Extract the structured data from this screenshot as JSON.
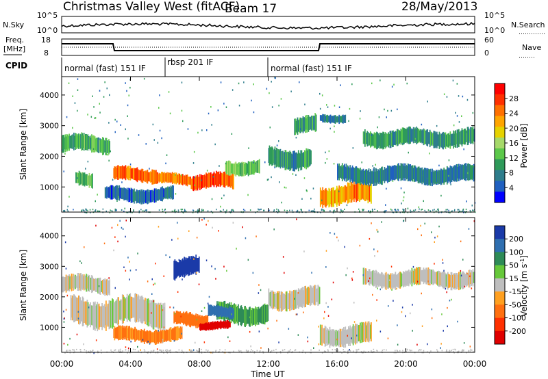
{
  "header": {
    "station": "Christmas Valley West (fitACF)",
    "beam": "Beam 17",
    "date": "28/May/2013"
  },
  "left_labels": {
    "nsky": "N.Sky",
    "freq_line1": "Freq.",
    "freq_line2": "[MHz]",
    "cpid": "CPID"
  },
  "right_labels": {
    "nsearch": "N.Search",
    "nave": "Nave"
  },
  "noise_axis": {
    "left_ticks": [
      "10^5",
      "10^0"
    ],
    "right_ticks": [
      "10^5",
      "10^0"
    ]
  },
  "freq_axis": {
    "left_ticks": [
      "18",
      "8"
    ],
    "right_ticks": [
      "60",
      "0"
    ]
  },
  "cpid_segments": [
    {
      "label": "normal (fast) 151 IF",
      "start_hour": 0,
      "end_hour": 6
    },
    {
      "label": "rbsp 201 IF",
      "start_hour": 6,
      "end_hour": 12
    },
    {
      "label": "normal (fast) 151 IF",
      "start_hour": 12,
      "end_hour": 24
    }
  ],
  "x_axis": {
    "ticks": [
      "00:00",
      "04:00",
      "08:00",
      "12:00",
      "16:00",
      "20:00",
      "00:00"
    ],
    "label": "Time UT"
  },
  "power_colorbar": {
    "label": "Power [dB]",
    "ticks": [
      "28",
      "24",
      "20",
      "16",
      "12",
      "8",
      "4"
    ],
    "colors": [
      "#ff0000",
      "#ff3000",
      "#ff7000",
      "#ffa500",
      "#e6d200",
      "#a6d96a",
      "#5cc84a",
      "#2f9a5a",
      "#2e7d8c",
      "#2060c0",
      "#0000ff"
    ]
  },
  "velocity_colorbar": {
    "label_prefix": "Velocity [m s",
    "label_sup": "-1",
    "label_suffix": "]",
    "ticks": [
      "200",
      "100",
      "50",
      "15",
      "-15",
      "-50",
      "-100",
      "-200"
    ],
    "colors": [
      "#1a3aa8",
      "#2f6fb0",
      "#2e8b57",
      "#66c83a",
      "#bebebe",
      "#ffa020",
      "#ff7010",
      "#ff3000",
      "#e00000"
    ]
  },
  "chart_data": [
    {
      "type": "heatmap",
      "title": "Power",
      "ylabel": "Slant Range [km]",
      "xlabel": "",
      "xlim": [
        0,
        24
      ],
      "ylim": [
        180,
        4600
      ],
      "yticks": [
        1000,
        2000,
        3000,
        4000
      ],
      "colorbar_label": "Power [dB]",
      "colorbar_range": [
        0,
        30
      ],
      "regions": [
        {
          "t0": 0.0,
          "t1": 2.8,
          "r0": 2100,
          "r1": 2700,
          "value": 10
        },
        {
          "t0": 0.8,
          "t1": 1.8,
          "r0": 1000,
          "r1": 1500,
          "value": 12
        },
        {
          "t0": 3.0,
          "t1": 5.5,
          "r0": 1150,
          "r1": 1650,
          "value": 24
        },
        {
          "t0": 2.5,
          "t1": 6.5,
          "r0": 500,
          "r1": 1000,
          "value": 4
        },
        {
          "t0": 5.5,
          "t1": 7.5,
          "r0": 1050,
          "r1": 1450,
          "value": 24
        },
        {
          "t0": 7.5,
          "t1": 10.0,
          "r0": 900,
          "r1": 1450,
          "value": 26
        },
        {
          "t0": 9.5,
          "t1": 11.5,
          "r0": 1400,
          "r1": 1900,
          "value": 12
        },
        {
          "t0": 12.0,
          "t1": 14.5,
          "r0": 1600,
          "r1": 2300,
          "value": 8
        },
        {
          "t0": 13.5,
          "t1": 14.8,
          "r0": 2700,
          "r1": 3300,
          "value": 8
        },
        {
          "t0": 15.0,
          "t1": 16.5,
          "r0": 3100,
          "r1": 3400,
          "value": 6
        },
        {
          "t0": 15.0,
          "t1": 18.0,
          "r0": 400,
          "r1": 1100,
          "value": 22
        },
        {
          "t0": 17.5,
          "t1": 24.0,
          "r0": 2300,
          "r1": 2900,
          "value": 8
        },
        {
          "t0": 16.0,
          "t1": 24.0,
          "r0": 1100,
          "r1": 1700,
          "value": 6
        }
      ]
    },
    {
      "type": "heatmap",
      "title": "Velocity",
      "ylabel": "Slant Range [km]",
      "xlabel": "Time UT",
      "xlim": [
        0,
        24
      ],
      "ylim": [
        180,
        4600
      ],
      "yticks": [
        1000,
        2000,
        3000,
        4000
      ],
      "colorbar_label": "Velocity [m s-1]",
      "colorbar_range": [
        -250,
        250
      ],
      "regions": [
        {
          "t0": 0.0,
          "t1": 2.8,
          "r0": 2100,
          "r1": 2700,
          "value": 0
        },
        {
          "t0": 0.5,
          "t1": 6.0,
          "r0": 1000,
          "r1": 2000,
          "value": 0
        },
        {
          "t0": 3.0,
          "t1": 7.0,
          "r0": 500,
          "r1": 1000,
          "value": -60
        },
        {
          "t0": 6.5,
          "t1": 8.5,
          "r0": 1000,
          "r1": 1500,
          "value": -80
        },
        {
          "t0": 8.0,
          "t1": 9.8,
          "r0": 900,
          "r1": 1200,
          "value": -180
        },
        {
          "t0": 9.0,
          "t1": 12.0,
          "r0": 1100,
          "r1": 1800,
          "value": 40
        },
        {
          "t0": 8.5,
          "t1": 10.0,
          "r0": 1300,
          "r1": 1700,
          "value": 120
        },
        {
          "t0": 6.5,
          "t1": 8.0,
          "r0": 2600,
          "r1": 3300,
          "value": 200
        },
        {
          "t0": 12.0,
          "t1": 15.0,
          "r0": 1600,
          "r1": 2300,
          "value": 0
        },
        {
          "t0": 15.0,
          "t1": 18.0,
          "r0": 400,
          "r1": 1100,
          "value": 0
        },
        {
          "t0": 17.5,
          "t1": 24.0,
          "r0": 2300,
          "r1": 2900,
          "value": 0
        }
      ]
    }
  ]
}
